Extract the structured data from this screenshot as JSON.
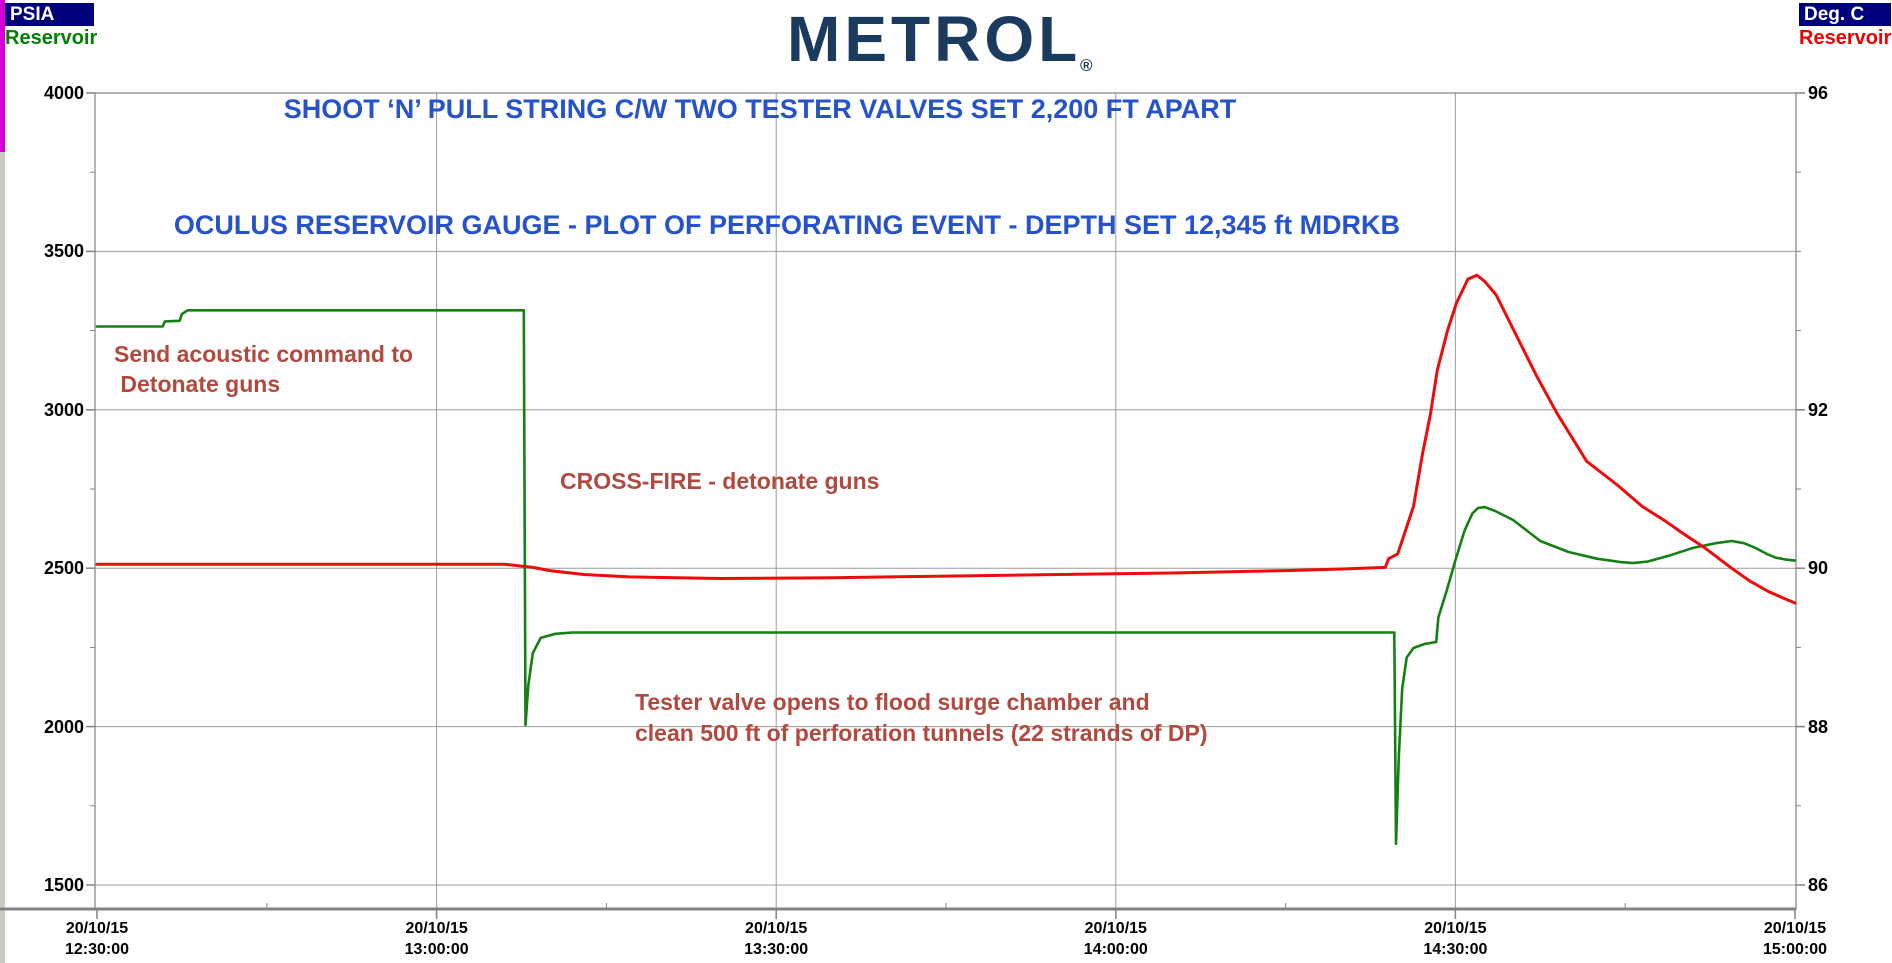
{
  "header": {
    "left_unit_label": "PSIA",
    "left_series_label": "Reservoir",
    "right_unit_label": "Deg. C",
    "right_series_label": "Reservoir",
    "logo_text": "METROL",
    "logo_mark": "®"
  },
  "colors": {
    "pressure": "#148014",
    "temperature": "#ec0c0c",
    "title_blue": "#2653cb",
    "annotation_red": "#b2493f",
    "unit_box_navy": "#00007d",
    "grid": "#9c9c9c",
    "axis": "#828282",
    "logo_navy": "#1a3a5e",
    "left_series_green": "#008000",
    "right_series_red": "#ee0000",
    "edge_accent_magenta": "#d400d4"
  },
  "chart_data": {
    "type": "line",
    "title1": "SHOOT ‘N’ PULL STRING C/W TWO TESTER VALVES SET 2,200 FT APART",
    "title2": "OCULUS RESERVOIR GAUGE - PLOT OF PERFORATING EVENT - DEPTH SET 12,345 ft MDRKB",
    "annotations": {
      "send_command": "Send acoustic command to\n Detonate guns",
      "crossfire": "CROSS-FIRE - detonate guns",
      "tester_valve": "Tester valve opens to flood surge chamber and\nclean 500 ft of perforation tunnels (22 strands of DP)"
    },
    "grid": "on",
    "legend": "none",
    "x_axis": {
      "date_label": "20/10/15",
      "tick_times": [
        "12:30:00",
        "13:00:00",
        "13:30:00",
        "14:00:00",
        "14:30:00",
        "15:00:00"
      ],
      "tick_minutes": [
        0,
        30,
        60,
        90,
        120,
        150
      ],
      "minor_tick_minutes": [
        15,
        45,
        75,
        105,
        135
      ],
      "range_minutes": [
        0,
        150
      ]
    },
    "y_left_axis": {
      "unit": "PSIA",
      "tick_values": [
        4000,
        3500,
        3000,
        2500,
        2000,
        1500
      ],
      "minor_tick_values": [
        3750,
        3250,
        2750,
        2250,
        1750
      ],
      "range": [
        1500,
        4000
      ]
    },
    "y_right_axis": {
      "unit": "Deg. C",
      "labeled_ticks": [
        96,
        92,
        90,
        88,
        86
      ],
      "tick_step": 1,
      "range": [
        86,
        96
      ]
    },
    "series": [
      {
        "name": "Reservoir Pressure",
        "axis": "left",
        "unit": "PSIA",
        "color_key": "pressure",
        "points_min_value": [
          [
            0,
            3263
          ],
          [
            5.8,
            3263
          ],
          [
            6.0,
            3279
          ],
          [
            7.3,
            3281
          ],
          [
            7.5,
            3302
          ],
          [
            8.0,
            3314
          ],
          [
            37.7,
            3314
          ],
          [
            37.85,
            2005
          ],
          [
            38.1,
            2130
          ],
          [
            38.5,
            2232
          ],
          [
            39.2,
            2280
          ],
          [
            40.5,
            2293
          ],
          [
            42,
            2297
          ],
          [
            114.6,
            2297
          ],
          [
            114.75,
            1630
          ],
          [
            115.0,
            1905
          ],
          [
            115.3,
            2120
          ],
          [
            115.7,
            2218
          ],
          [
            116.3,
            2248
          ],
          [
            117.3,
            2261
          ],
          [
            118.3,
            2267
          ],
          [
            118.5,
            2345
          ],
          [
            119.2,
            2425
          ],
          [
            120.0,
            2525
          ],
          [
            120.8,
            2618
          ],
          [
            121.5,
            2673
          ],
          [
            122.0,
            2690
          ],
          [
            122.6,
            2693
          ],
          [
            123.5,
            2681
          ],
          [
            125.1,
            2652
          ],
          [
            127.5,
            2586
          ],
          [
            130,
            2551
          ],
          [
            132.5,
            2530
          ],
          [
            134.5,
            2520
          ],
          [
            135.7,
            2516
          ],
          [
            137,
            2521
          ],
          [
            139,
            2541
          ],
          [
            141,
            2564
          ],
          [
            143,
            2579
          ],
          [
            144.4,
            2586
          ],
          [
            145.5,
            2579
          ],
          [
            146.5,
            2564
          ],
          [
            147.5,
            2545
          ],
          [
            148.3,
            2533
          ],
          [
            149.2,
            2527
          ],
          [
            150,
            2524
          ]
        ]
      },
      {
        "name": "Reservoir Temperature",
        "axis": "right",
        "unit": "Deg. C",
        "color_key": "temperature",
        "points_min_value": [
          [
            0,
            90.05
          ],
          [
            20,
            90.05
          ],
          [
            36,
            90.05
          ],
          [
            38.5,
            90.01
          ],
          [
            40,
            89.97
          ],
          [
            43,
            89.92
          ],
          [
            47,
            89.89
          ],
          [
            55,
            89.87
          ],
          [
            65,
            89.88
          ],
          [
            75,
            89.9
          ],
          [
            85,
            89.92
          ],
          [
            95,
            89.94
          ],
          [
            105,
            89.97
          ],
          [
            110,
            89.99
          ],
          [
            113.8,
            90.01
          ],
          [
            114.1,
            90.12
          ],
          [
            114.9,
            90.18
          ],
          [
            115.3,
            90.35
          ],
          [
            116.3,
            90.78
          ],
          [
            117.1,
            91.45
          ],
          [
            117.8,
            91.95
          ],
          [
            118.4,
            92.5
          ],
          [
            119.3,
            93.0
          ],
          [
            120.1,
            93.35
          ],
          [
            121.1,
            93.65
          ],
          [
            121.9,
            93.7
          ],
          [
            122.6,
            93.62
          ],
          [
            123.6,
            93.45
          ],
          [
            125.1,
            93.02
          ],
          [
            127.2,
            92.42
          ],
          [
            129.0,
            91.95
          ],
          [
            131.6,
            91.35
          ],
          [
            134.3,
            91.05
          ],
          [
            136.5,
            90.78
          ],
          [
            138.5,
            90.6
          ],
          [
            140.1,
            90.44
          ],
          [
            142,
            90.26
          ],
          [
            144.4,
            90.0
          ],
          [
            146,
            89.84
          ],
          [
            147.6,
            89.71
          ],
          [
            149,
            89.62
          ],
          [
            150,
            89.56
          ]
        ]
      }
    ]
  }
}
